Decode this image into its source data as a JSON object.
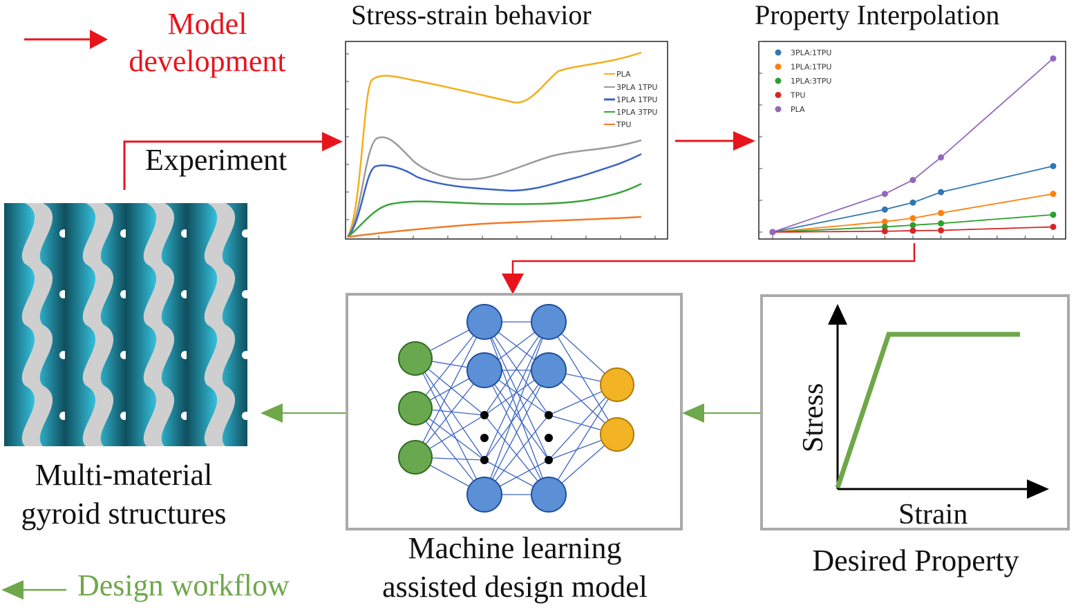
{
  "legend": {
    "model_label": "Model\ndevelopment",
    "design_label": "Design workflow",
    "model_color": "#e8141c",
    "design_color": "#6ea84a"
  },
  "experiment": {
    "label": "Experiment"
  },
  "stress_strain": {
    "title": "Stress-strain behavior",
    "legend": [
      "PLA",
      "3PLA 1TPU",
      "1PLA 1TPU",
      "1PLA 3TPU",
      "TPU"
    ],
    "colors": [
      "#f5ad1a",
      "#9a9a9a",
      "#3b63c4",
      "#3aa33a",
      "#f07a2a"
    ]
  },
  "chart_data": {
    "type": "scatter",
    "title": "Property Interpolation",
    "series": [
      {
        "name": "3PLA:1TPU",
        "color": "#2f77b4",
        "points": [
          [
            0,
            0
          ],
          [
            4,
            0.13
          ],
          [
            5,
            0.17
          ],
          [
            6,
            0.23
          ],
          [
            10,
            0.38
          ]
        ]
      },
      {
        "name": "1PLA:1TPU",
        "color": "#ff7f0e",
        "points": [
          [
            0,
            0
          ],
          [
            4,
            0.06
          ],
          [
            5,
            0.08
          ],
          [
            6,
            0.11
          ],
          [
            10,
            0.22
          ]
        ]
      },
      {
        "name": "1PLA:3TPU",
        "color": "#2ca02c",
        "points": [
          [
            0,
            0
          ],
          [
            4,
            0.03
          ],
          [
            5,
            0.04
          ],
          [
            6,
            0.05
          ],
          [
            10,
            0.1
          ]
        ]
      },
      {
        "name": "TPU",
        "color": "#d62728",
        "points": [
          [
            0,
            0
          ],
          [
            4,
            0.005
          ],
          [
            5,
            0.008
          ],
          [
            6,
            0.01
          ],
          [
            10,
            0.03
          ]
        ]
      },
      {
        "name": "PLA",
        "color": "#9467bd",
        "points": [
          [
            0,
            0
          ],
          [
            4,
            0.22
          ],
          [
            5,
            0.3
          ],
          [
            6,
            0.43
          ],
          [
            10,
            1.0
          ]
        ]
      }
    ],
    "xlim": [
      0,
      10
    ],
    "ylim": [
      0,
      1.05
    ]
  },
  "ml_model": {
    "caption": "Machine learning\nassisted design model"
  },
  "desired": {
    "caption": "Desired Property",
    "xlabel": "Strain",
    "ylabel": "Stress"
  },
  "gyroid": {
    "caption": "Multi-material\ngyroid structures"
  }
}
